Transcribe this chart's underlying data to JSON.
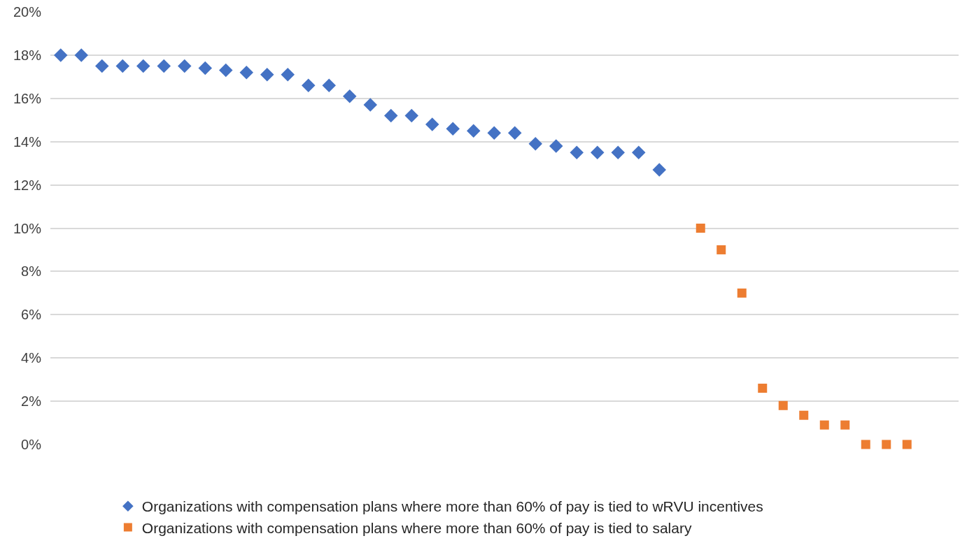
{
  "chart_data": {
    "type": "scatter",
    "categories": [
      null,
      null,
      null,
      null,
      null,
      null,
      null,
      null,
      null,
      null,
      null,
      null,
      null,
      null,
      null,
      null,
      null,
      null,
      null,
      null,
      null,
      null,
      null,
      null,
      null,
      null,
      null,
      null,
      null,
      null,
      null,
      null,
      null,
      null,
      null,
      null,
      null,
      null,
      null,
      null,
      null,
      null,
      null,
      null
    ],
    "series": [
      {
        "name": "Organizations with compensation plans where more than 60% of pay is tied to wRVU incentives",
        "color": "#4472c4",
        "marker": "diamond",
        "values": [
          18,
          18,
          17.5,
          17.5,
          17.5,
          17.5,
          17.5,
          17.4,
          17.3,
          17.2,
          17.1,
          17.1,
          16.6,
          16.6,
          16.1,
          15.7,
          15.2,
          15.2,
          14.8,
          14.6,
          14.5,
          14.4,
          14.4,
          13.9,
          13.8,
          13.5,
          13.5,
          13.5,
          13.5,
          12.7,
          null,
          null,
          null,
          null,
          null,
          null,
          null,
          null,
          null,
          null,
          null,
          null,
          null,
          null
        ]
      },
      {
        "name": "Organizations with compensation plans where more than 60% of pay is tied to salary",
        "color": "#ed7d31",
        "marker": "square",
        "values": [
          null,
          null,
          null,
          null,
          null,
          null,
          null,
          null,
          null,
          null,
          null,
          null,
          null,
          null,
          null,
          null,
          null,
          null,
          null,
          null,
          null,
          null,
          null,
          null,
          null,
          null,
          null,
          null,
          null,
          null,
          null,
          10,
          9,
          7,
          2.6,
          1.8,
          1.35,
          0.9,
          0.9,
          0,
          0,
          0,
          null,
          null
        ]
      }
    ],
    "ylim": [
      0,
      20
    ],
    "yticks": [
      {
        "value": 0,
        "label": "0%"
      },
      {
        "value": 2,
        "label": "2%"
      },
      {
        "value": 4,
        "label": "4%"
      },
      {
        "value": 6,
        "label": "6%"
      },
      {
        "value": 8,
        "label": "8%"
      },
      {
        "value": 10,
        "label": "10%"
      },
      {
        "value": 12,
        "label": "12%"
      },
      {
        "value": 14,
        "label": "14%"
      },
      {
        "value": 16,
        "label": "16%"
      },
      {
        "value": 18,
        "label": "18%"
      },
      {
        "value": 20,
        "label": "20%"
      }
    ],
    "grid": "y",
    "legend": "bottom",
    "tick_labels": "y"
  }
}
